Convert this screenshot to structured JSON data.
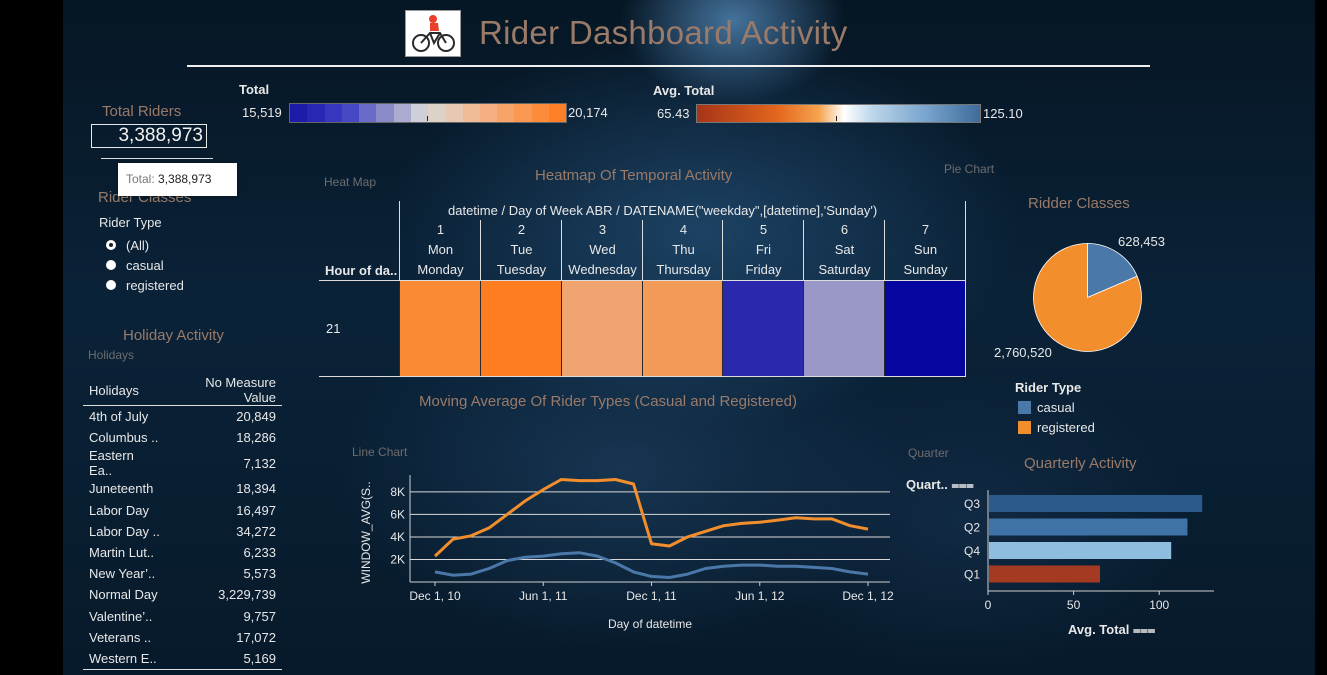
{
  "header": {
    "title": "Rider Dashboard Activity",
    "logo": "bicycle-rider-icon"
  },
  "legends": {
    "total": {
      "label": "Total",
      "min": "15,519",
      "max": "20,174",
      "colors": [
        "#1c1ca8",
        "#2727b4",
        "#3636be",
        "#4848c4",
        "#6a6ac8",
        "#8a8ac8",
        "#ababd0",
        "#cfcfd8",
        "#dcd2c8",
        "#e8c8b0",
        "#f0bc98",
        "#f4b080",
        "#f8a468",
        "#fb9852",
        "#fd8b3c",
        "#fe7f28"
      ]
    },
    "avg_total": {
      "label": "Avg. Total",
      "min": "65.43",
      "max": "125.10"
    }
  },
  "left_panel": {
    "total_riders_label": "Total Riders",
    "total_riders_value": "3,388,973",
    "tooltip_key": "Total:",
    "tooltip_value": "3,388,973",
    "rider_classes_label": "Rider Classes",
    "rider_type_label": "Rider Type",
    "rider_type_options": [
      {
        "label": "(All)",
        "selected": true
      },
      {
        "label": "casual",
        "selected": false
      },
      {
        "label": "registered",
        "selected": false
      }
    ],
    "holiday_title": "Holiday Activity",
    "holiday_ghost": "Holidays",
    "holiday_table": {
      "headers": [
        "Holidays",
        "No Measure Value"
      ],
      "rows": [
        [
          "4th of July",
          "20,849"
        ],
        [
          "Columbus ..",
          "18,286"
        ],
        [
          "Eastern Ea..",
          "7,132"
        ],
        [
          "Juneteenth",
          "18,394"
        ],
        [
          "Labor Day",
          "16,497"
        ],
        [
          "Labor Day ..",
          "34,272"
        ],
        [
          "Martin Lut..",
          "6,233"
        ],
        [
          "New Year’..",
          "5,573"
        ],
        [
          "Normal Day",
          "3,229,739"
        ],
        [
          "Valentine’..",
          "9,757"
        ],
        [
          "Veterans ..",
          "17,072"
        ],
        [
          "Western E..",
          "5,169"
        ]
      ]
    }
  },
  "heatmap": {
    "ghost": "Heat Map",
    "title": "Heatmap Of Temporal Activity",
    "header": "datetime / Day of Week ABR / DATENAME(\"weekday\",[datetime],'Sunday')",
    "row_header": "Hour of da..",
    "row_label": "21",
    "columns": [
      {
        "num": "1",
        "abbr": "Mon",
        "name": "Monday",
        "color": "#fb8a35"
      },
      {
        "num": "2",
        "abbr": "Tue",
        "name": "Tuesday",
        "color": "#fe7d20"
      },
      {
        "num": "3",
        "abbr": "Wed",
        "name": "Wednesday",
        "color": "#f0a571"
      },
      {
        "num": "4",
        "abbr": "Thu",
        "name": "Thursday",
        "color": "#f29a58"
      },
      {
        "num": "5",
        "abbr": "Fri",
        "name": "Friday",
        "color": "#2a28ac"
      },
      {
        "num": "6",
        "abbr": "Sat",
        "name": "Saturday",
        "color": "#9a98c8"
      },
      {
        "num": "7",
        "abbr": "Sun",
        "name": "Sunday",
        "color": "#0606a0"
      }
    ]
  },
  "pie": {
    "ghost": "Pie Chart",
    "title": "Ridder Classes",
    "label_registered": "2,760,520",
    "label_casual": "628,453",
    "legend_title": "Rider Type",
    "legend": [
      {
        "name": "casual",
        "color": "#4a78a8"
      },
      {
        "name": "registered",
        "color": "#f28e2b"
      }
    ]
  },
  "line_chart": {
    "ghost": "Line Chart",
    "title": "Moving Average Of Rider Types (Casual and Registered)",
    "ylabel": "WINDOW_AVG(S..",
    "xlabel": "Day of datetime",
    "yticks": [
      "2K",
      "4K",
      "6K",
      "8K"
    ],
    "xticks": [
      "Dec 1, 10",
      "Jun 1, 11",
      "Dec 1, 11",
      "Jun 1, 12",
      "Dec 1, 12"
    ]
  },
  "quarterly": {
    "ghost": "Quarter",
    "title": "Quarterly Activity",
    "yheader": "Quart..",
    "xlabel": "Avg. Total",
    "xticks": [
      "0",
      "50",
      "100"
    ]
  },
  "chart_data": [
    {
      "type": "pie",
      "title": "Ridder Classes",
      "categories": [
        "casual",
        "registered"
      ],
      "values": [
        628453,
        2760520
      ]
    },
    {
      "type": "bar",
      "title": "Quarterly Activity",
      "orientation": "horizontal",
      "categories": [
        "Q3",
        "Q2",
        "Q4",
        "Q1"
      ],
      "values": [
        125.1,
        116.5,
        107.0,
        65.43
      ],
      "colors": [
        "#2c5a8a",
        "#3f72a6",
        "#8fbde0",
        "#a53a22"
      ],
      "xlabel": "Avg. Total",
      "ylabel": "Quart..",
      "xlim": [
        0,
        132
      ]
    },
    {
      "type": "line",
      "title": "Moving Average Of Rider Types (Casual and Registered)",
      "xlabel": "Day of datetime",
      "ylabel": "WINDOW_AVG(S..",
      "ylim": [
        0,
        9500
      ],
      "x": [
        "2010-12-01",
        "2011-01-01",
        "2011-02-01",
        "2011-03-01",
        "2011-04-01",
        "2011-05-01",
        "2011-06-01",
        "2011-07-01",
        "2011-08-01",
        "2011-09-01",
        "2011-10-01",
        "2011-11-01",
        "2011-12-01",
        "2012-01-01",
        "2012-02-01",
        "2012-03-01",
        "2012-04-01",
        "2012-05-01",
        "2012-06-01",
        "2012-07-01",
        "2012-08-01",
        "2012-09-01",
        "2012-10-01",
        "2012-11-01",
        "2012-12-01"
      ],
      "series": [
        {
          "name": "registered",
          "color": "#f28e2b",
          "values": [
            2300,
            3800,
            4100,
            4800,
            6000,
            7200,
            8200,
            9100,
            9000,
            9000,
            9100,
            8700,
            3400,
            3200,
            4000,
            4500,
            5000,
            5200,
            5300,
            5500,
            5700,
            5600,
            5600,
            5000,
            4700
          ]
        },
        {
          "name": "casual",
          "color": "#4a78a8",
          "values": [
            900,
            600,
            700,
            1200,
            1900,
            2200,
            2300,
            2500,
            2600,
            2300,
            1700,
            900,
            500,
            400,
            700,
            1200,
            1400,
            1500,
            1500,
            1400,
            1400,
            1300,
            1200,
            900,
            700
          ]
        }
      ]
    }
  ]
}
